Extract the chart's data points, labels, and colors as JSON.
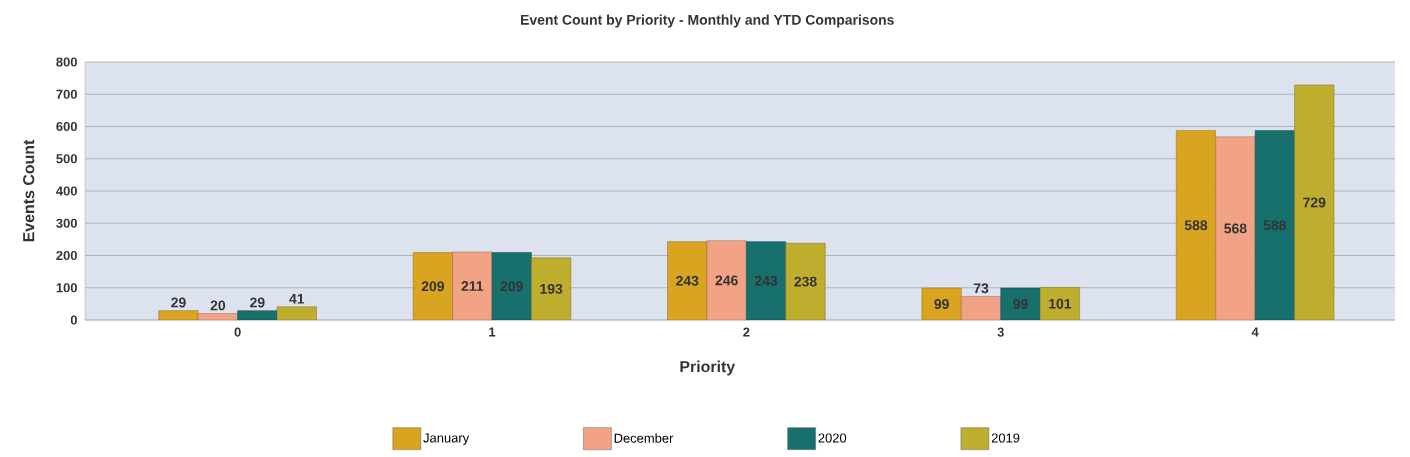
{
  "chart_data": {
    "type": "bar",
    "title": "Event Count by Priority - Monthly and YTD Comparisons",
    "xlabel": "Priority",
    "ylabel": "Events Count",
    "categories": [
      "0",
      "1",
      "2",
      "3",
      "4"
    ],
    "series": [
      {
        "name": "January",
        "color": "#d9a520",
        "values": [
          29,
          209,
          243,
          99,
          588
        ]
      },
      {
        "name": "December",
        "color": "#f2a285",
        "values": [
          20,
          211,
          246,
          73,
          568
        ]
      },
      {
        "name": "2020",
        "color": "#17706e",
        "values": [
          29,
          209,
          243,
          99,
          588
        ]
      },
      {
        "name": "2019",
        "color": "#bfae2e",
        "values": [
          41,
          193,
          238,
          101,
          729
        ]
      }
    ],
    "ylim": [
      0,
      800
    ],
    "yticks": [
      0,
      100,
      200,
      300,
      400,
      500,
      600,
      700,
      800
    ],
    "grid": "y",
    "legend": "bottom",
    "data_labels": true
  }
}
